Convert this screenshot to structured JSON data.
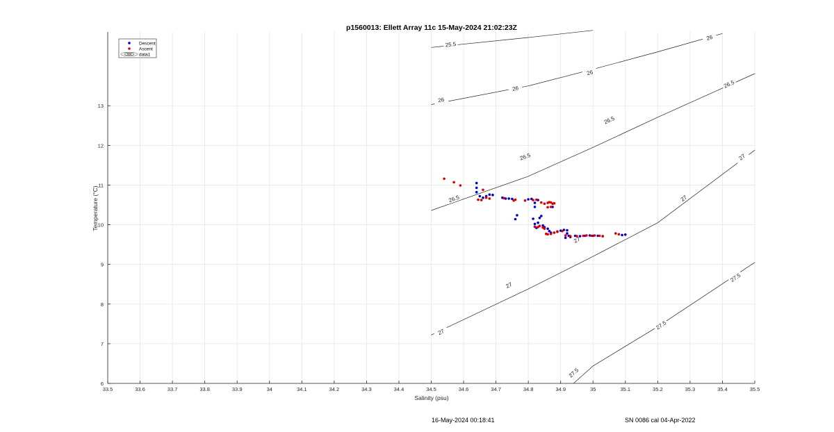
{
  "chart_data": {
    "type": "scatter",
    "title": "p1560013: Ellett Array 11c 15-May-2024 21:02:23Z",
    "xlabel": "Salinity (psu)",
    "ylabel": "Temperature (°C)",
    "xlim": [
      33.5,
      35.5
    ],
    "ylim": [
      6,
      14.86
    ],
    "xticks": [
      33.5,
      33.6,
      33.7,
      33.8,
      33.9,
      34,
      34.1,
      34.2,
      34.3,
      34.4,
      34.5,
      34.6,
      34.7,
      34.8,
      34.9,
      35,
      35.1,
      35.2,
      35.3,
      35.4,
      35.5
    ],
    "yticks": [
      6,
      7,
      8,
      9,
      10,
      11,
      12,
      13
    ],
    "grid": true,
    "legend_position": "top-left",
    "legend": [
      {
        "label": "Descent",
        "marker": "dot",
        "color": "#0000cc"
      },
      {
        "label": "Ascent",
        "marker": "dot",
        "color": "#dd0000"
      },
      {
        "label": "data1",
        "marker": "contour",
        "color": "#555555"
      }
    ],
    "series": [
      {
        "name": "Descent",
        "color": "#0000cc",
        "points": [
          [
            34.64,
            11.05
          ],
          [
            34.64,
            10.93
          ],
          [
            34.64,
            10.82
          ],
          [
            34.65,
            10.72
          ],
          [
            34.66,
            10.68
          ],
          [
            34.67,
            10.72
          ],
          [
            34.68,
            10.76
          ],
          [
            34.69,
            10.75
          ],
          [
            34.72,
            10.68
          ],
          [
            34.73,
            10.66
          ],
          [
            34.74,
            10.66
          ],
          [
            34.75,
            10.65
          ],
          [
            34.76,
            10.14
          ],
          [
            34.765,
            10.24
          ],
          [
            34.8,
            10.64
          ],
          [
            34.81,
            10.65
          ],
          [
            34.82,
            10.55
          ],
          [
            34.82,
            10.45
          ],
          [
            34.83,
            10.62
          ],
          [
            34.815,
            10.15
          ],
          [
            34.82,
            10.02
          ],
          [
            34.82,
            9.95
          ],
          [
            34.825,
            9.92
          ],
          [
            34.83,
            10.05
          ],
          [
            34.835,
            10.17
          ],
          [
            34.84,
            10.22
          ],
          [
            34.845,
            9.98
          ],
          [
            34.85,
            9.94
          ],
          [
            34.86,
            9.9
          ],
          [
            34.865,
            9.84
          ],
          [
            34.87,
            9.8
          ],
          [
            34.88,
            9.8
          ],
          [
            34.89,
            9.83
          ],
          [
            34.9,
            9.85
          ],
          [
            34.91,
            9.87
          ],
          [
            34.92,
            9.86
          ],
          [
            34.92,
            9.78
          ],
          [
            34.925,
            9.72
          ],
          [
            34.93,
            9.69
          ],
          [
            34.945,
            9.72
          ],
          [
            34.96,
            9.71
          ],
          [
            34.975,
            9.72
          ],
          [
            34.99,
            9.73
          ],
          [
            35.0,
            9.72
          ],
          [
            35.015,
            9.72
          ],
          [
            35.03,
            9.71
          ],
          [
            35.09,
            9.74
          ],
          [
            35.1,
            9.75
          ],
          [
            34.915,
            9.67
          ],
          [
            34.875,
            10.45
          ]
        ]
      },
      {
        "name": "Ascent",
        "color": "#dd0000",
        "points": [
          [
            34.54,
            11.16
          ],
          [
            34.57,
            11.07
          ],
          [
            34.59,
            10.99
          ],
          [
            34.645,
            10.63
          ],
          [
            34.66,
            10.88
          ],
          [
            34.655,
            10.62
          ],
          [
            34.67,
            10.68
          ],
          [
            34.68,
            10.66
          ],
          [
            34.725,
            10.67
          ],
          [
            34.755,
            10.61
          ],
          [
            34.76,
            10.63
          ],
          [
            34.79,
            10.61
          ],
          [
            34.815,
            10.62
          ],
          [
            34.825,
            10.63
          ],
          [
            34.84,
            10.56
          ],
          [
            34.85,
            10.53
          ],
          [
            34.86,
            10.55
          ],
          [
            34.87,
            10.56
          ],
          [
            34.88,
            10.54
          ],
          [
            34.87,
            10.45
          ],
          [
            34.86,
            10.44
          ],
          [
            34.82,
            9.95
          ],
          [
            34.83,
            9.94
          ],
          [
            34.835,
            9.97
          ],
          [
            34.845,
            9.93
          ],
          [
            34.85,
            9.9
          ],
          [
            34.855,
            9.77
          ],
          [
            34.86,
            9.76
          ],
          [
            34.87,
            9.77
          ],
          [
            34.88,
            9.8
          ],
          [
            34.89,
            9.82
          ],
          [
            34.905,
            9.84
          ],
          [
            34.915,
            9.73
          ],
          [
            34.93,
            9.71
          ],
          [
            34.95,
            9.71
          ],
          [
            34.97,
            9.72
          ],
          [
            34.98,
            9.73
          ],
          [
            34.995,
            9.72
          ],
          [
            35.005,
            9.73
          ],
          [
            35.02,
            9.72
          ],
          [
            35.03,
            9.71
          ],
          [
            35.07,
            9.78
          ],
          [
            35.08,
            9.76
          ],
          [
            34.865,
            10.57
          ],
          [
            34.875,
            10.53
          ]
        ]
      }
    ],
    "contours": [
      {
        "label": "25.5",
        "points": [
          [
            34.5,
            14.47
          ],
          [
            34.8,
            14.72
          ],
          [
            35.0,
            14.9
          ]
        ],
        "labels_at": [
          [
            34.56,
            14.55
          ]
        ]
      },
      {
        "label": "26",
        "points": [
          [
            34.5,
            13.03
          ],
          [
            34.8,
            13.5
          ],
          [
            35.0,
            13.92
          ],
          [
            35.2,
            14.36
          ],
          [
            35.4,
            14.82
          ]
        ],
        "labels_at": [
          [
            34.53,
            13.15
          ],
          [
            34.76,
            13.44
          ],
          [
            34.99,
            13.84
          ],
          [
            35.36,
            14.72
          ]
        ]
      },
      {
        "label": "26.5",
        "points": [
          [
            34.5,
            10.36
          ],
          [
            34.8,
            11.22
          ],
          [
            35.0,
            11.95
          ],
          [
            35.2,
            12.71
          ],
          [
            35.5,
            13.81
          ]
        ],
        "labels_at": [
          [
            34.57,
            10.66
          ],
          [
            34.79,
            11.72
          ],
          [
            35.05,
            12.64
          ],
          [
            35.42,
            13.55
          ]
        ]
      },
      {
        "label": "27",
        "points": [
          [
            34.5,
            7.22
          ],
          [
            34.8,
            8.38
          ],
          [
            35.0,
            9.2
          ],
          [
            35.2,
            10.05
          ],
          [
            35.5,
            11.88
          ]
        ],
        "labels_at": [
          [
            34.53,
            7.3
          ],
          [
            34.74,
            8.48
          ],
          [
            34.95,
            9.62
          ],
          [
            35.28,
            10.67
          ],
          [
            35.46,
            11.71
          ]
        ]
      },
      {
        "label": "27.5",
        "points": [
          [
            34.94,
            6.0
          ],
          [
            35.0,
            6.44
          ],
          [
            35.2,
            7.43
          ],
          [
            35.5,
            9.05
          ]
        ],
        "labels_at": [
          [
            34.94,
            6.27
          ],
          [
            35.21,
            7.47
          ],
          [
            35.44,
            8.67
          ]
        ]
      }
    ]
  },
  "footer": {
    "timestamp": "16-May-2024 00:18:41",
    "calibration": "SN 0086 cal 04-Apr-2022"
  }
}
